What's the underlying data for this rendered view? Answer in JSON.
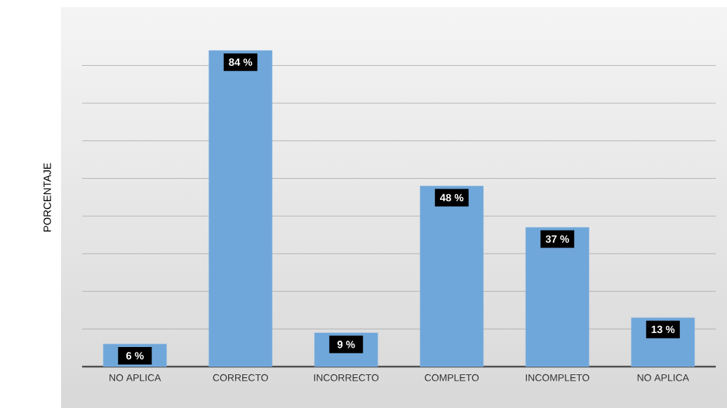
{
  "chart_data": {
    "type": "bar",
    "ylabel": "PORCENTAJE",
    "categories": [
      "NO APLICA",
      "CORRECTO",
      "INCORRECTO",
      "COMPLETO",
      "INCOMPLETO",
      "NO APLICA"
    ],
    "values": [
      6,
      84,
      9,
      48,
      37,
      13
    ],
    "value_labels": [
      "6 %",
      "84 %",
      "9 %",
      "48 %",
      "37 %",
      "13 %"
    ],
    "color": "#70a7da",
    "grid": "y",
    "tick_labels": "x"
  }
}
